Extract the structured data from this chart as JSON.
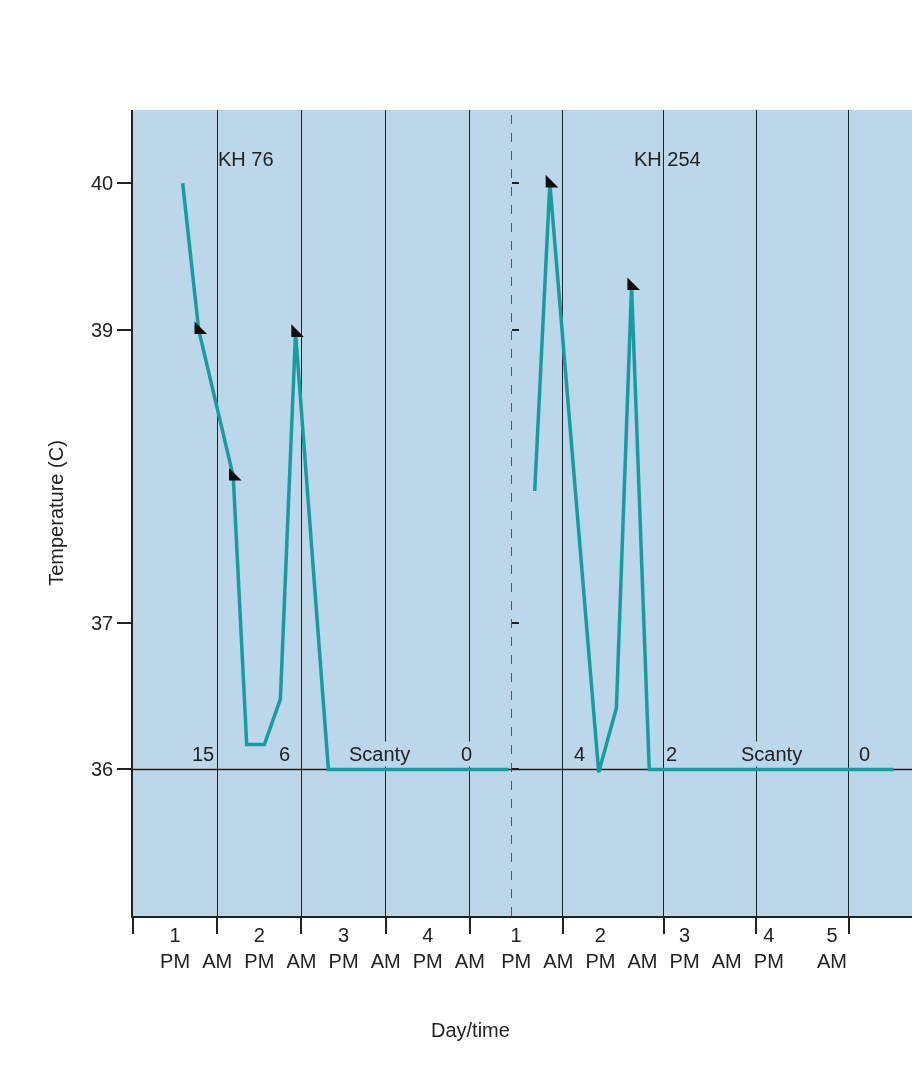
{
  "chart_data": [
    {
      "type": "line",
      "title": "KH 76",
      "ylabel": "Temperature (C)",
      "xlabel": "Day/time",
      "x": [
        1.09,
        1.28,
        1.69,
        1.85,
        2.06,
        2.25,
        2.43,
        2.82,
        4.96
      ],
      "series": [
        {
          "color": "#1a9ba1",
          "values": [
            40.0,
            39.0,
            38.0,
            36.17,
            36.17,
            36.48,
            38.98,
            36.0,
            36.0
          ]
        },
        {
          "type": "scatter",
          "marker": "triangle",
          "color": "#111111",
          "x": [
            1.28,
            1.69,
            2.43
          ],
          "values": [
            39.0,
            38.0,
            38.98
          ]
        }
      ],
      "xlim": [
        0.5,
        5.0
      ],
      "xticks": [
        {
          "value": 0.5,
          "label": null
        },
        {
          "value": 1,
          "label": "1\nPM"
        },
        {
          "value": 1.5,
          "label": "\nAM"
        },
        {
          "value": 2,
          "label": "2\nPM"
        },
        {
          "value": 2.5,
          "label": "\nAM"
        },
        {
          "value": 3,
          "label": "3\nPM"
        },
        {
          "value": 3.5,
          "label": "\nAM"
        },
        {
          "value": 4,
          "label": "4\nPM"
        },
        {
          "value": 4.5,
          "label": "\nAM"
        },
        {
          "value": 1.5,
          "label": null
        },
        {
          "value": 2.5,
          "label": null
        },
        {
          "value": 3.5,
          "label": null
        },
        {
          "value": 4.5,
          "label": null
        }
      ],
      "ylim": [
        35,
        40.5
      ],
      "yticks": [
        36,
        37,
        39,
        40
      ],
      "grid": "x",
      "line_style": "solid",
      "ref_lines": [
        {
          "axis": "y",
          "value": 36,
          "color": "#222222"
        },
        {
          "axis": "x",
          "value": 5.0,
          "color": "#333333",
          "line_style": "dashed"
        }
      ],
      "annotations": [
        "15",
        "6",
        "Scanty",
        "0"
      ]
    },
    {
      "type": "line",
      "title": "KH 254",
      "x": [
        1.22,
        1.4,
        1.98,
        2.19,
        2.37,
        2.58,
        5.48
      ],
      "series": [
        {
          "color": "#1a9ba1",
          "values": [
            37.9,
            40.0,
            35.98,
            36.42,
            39.3,
            36.0,
            36.0
          ]
        },
        {
          "type": "scatter",
          "marker": "triangle",
          "color": "#111111",
          "x": [
            1.4,
            2.37
          ],
          "values": [
            40.0,
            39.3
          ]
        }
      ],
      "xlim": [
        0.95,
        5.7
      ],
      "xticks": [
        {
          "value": 1,
          "label": "1\nPM"
        },
        {
          "value": 1.5,
          "label": "\nAM"
        },
        {
          "value": 2,
          "label": "2\nPM"
        },
        {
          "value": 2.5,
          "label": "\nAM"
        },
        {
          "value": 3,
          "label": "3\nPM"
        },
        {
          "value": 3.5,
          "label": "\nAM"
        },
        {
          "value": 4,
          "label": "4\nPM"
        },
        {
          "value": 4.75,
          "label": "5\nAM"
        },
        {
          "value": 1.55,
          "label": null
        },
        {
          "value": 2.75,
          "label": null
        },
        {
          "value": 3.85,
          "label": null
        },
        {
          "value": 4.95,
          "label": null
        }
      ],
      "ylim": [
        35,
        40.5
      ],
      "yticks": [
        36,
        37,
        39,
        40
      ],
      "tick_labels": "x",
      "grid": "x",
      "line_style": "solid",
      "ref_lines": [
        {
          "axis": "y",
          "value": 36,
          "color": "#222222"
        }
      ],
      "annotations": [
        "4",
        "2",
        "Scanty",
        "0"
      ]
    }
  ]
}
